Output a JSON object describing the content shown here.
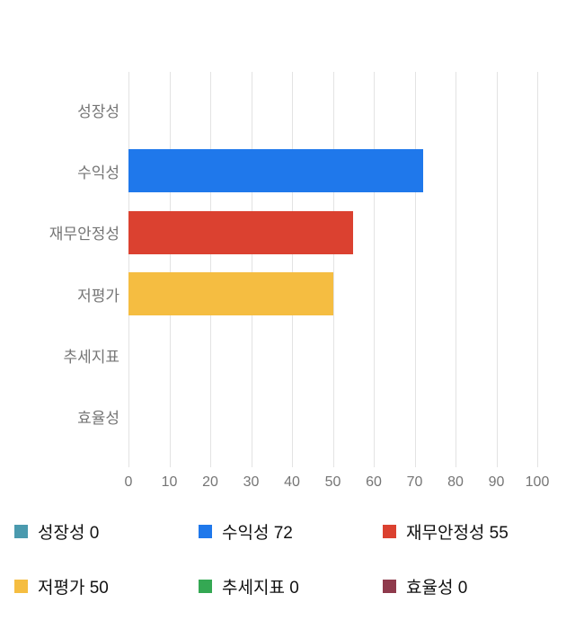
{
  "chart_data": {
    "type": "bar",
    "orientation": "horizontal",
    "title": "",
    "xlabel": "",
    "ylabel": "",
    "categories": [
      "성장성",
      "수익성",
      "재무안정성",
      "저평가",
      "추세지표",
      "효율성"
    ],
    "values": [
      0,
      72,
      55,
      50,
      0,
      0
    ],
    "bar_colors": [
      "#4a9aae",
      "#1f78eb",
      "#db4130",
      "#f5bd41",
      "#34a853",
      "#8f3a4c"
    ],
    "xlim": [
      0,
      100
    ],
    "x_ticks": [
      0,
      10,
      20,
      30,
      40,
      50,
      60,
      70,
      80,
      90,
      100
    ],
    "grid": true,
    "gridline_color": "#e3e3e3",
    "axis_text_color": "#757575",
    "legend_position": "bottom",
    "legend": [
      {
        "label": "성장성",
        "value": 0,
        "color": "#4a9aae"
      },
      {
        "label": "수익성",
        "value": 72,
        "color": "#1f78eb"
      },
      {
        "label": "재무안정성",
        "value": 55,
        "color": "#db4130"
      },
      {
        "label": "저평가",
        "value": 50,
        "color": "#f5bd41"
      },
      {
        "label": "추세지표",
        "value": 0,
        "color": "#34a853"
      },
      {
        "label": "효율성",
        "value": 0,
        "color": "#8f3a4c"
      }
    ]
  }
}
